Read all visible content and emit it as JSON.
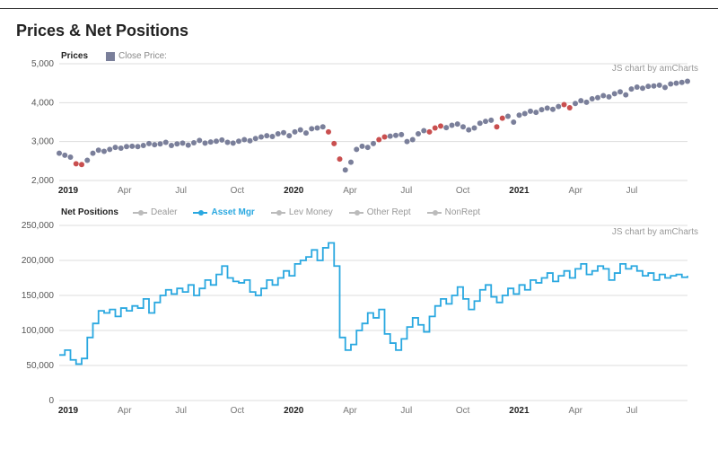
{
  "title": "Prices & Net Positions",
  "attribution": "JS chart by amCharts",
  "xaxis": {
    "range_months": [
      "2019-01",
      "2021-09"
    ],
    "ticks": [
      {
        "label": "2019",
        "bold": true
      },
      {
        "label": "Apr",
        "bold": false
      },
      {
        "label": "Jul",
        "bold": false
      },
      {
        "label": "Oct",
        "bold": false
      },
      {
        "label": "2020",
        "bold": true
      },
      {
        "label": "Apr",
        "bold": false
      },
      {
        "label": "Jul",
        "bold": false
      },
      {
        "label": "Oct",
        "bold": false
      },
      {
        "label": "2021",
        "bold": true
      },
      {
        "label": "Apr",
        "bold": false
      },
      {
        "label": "Jul",
        "bold": false
      }
    ]
  },
  "prices_chart": {
    "label": "Prices",
    "legend_label": "Close Price:",
    "type": "scatter",
    "marker_color": "#7a7f9a",
    "highlight_color": "#c94f4f",
    "marker_size": 3,
    "ylim": [
      2000,
      5000
    ],
    "ytick_step": 1000,
    "grid_color": "#dddddd",
    "background": "#ffffff",
    "highlight_indices": [
      3,
      4,
      48,
      49,
      50,
      57,
      58,
      66,
      67,
      68,
      78,
      79,
      90,
      91
    ],
    "values": [
      2700,
      2650,
      2600,
      2430,
      2410,
      2520,
      2700,
      2780,
      2750,
      2800,
      2850,
      2830,
      2870,
      2880,
      2870,
      2900,
      2950,
      2920,
      2940,
      2980,
      2900,
      2940,
      2960,
      2910,
      2970,
      3030,
      2960,
      2990,
      3010,
      3040,
      2980,
      2960,
      3010,
      3050,
      3020,
      3080,
      3120,
      3150,
      3130,
      3200,
      3230,
      3150,
      3250,
      3300,
      3220,
      3330,
      3350,
      3380,
      3250,
      2950,
      2550,
      2270,
      2470,
      2800,
      2880,
      2850,
      2950,
      3050,
      3120,
      3140,
      3160,
      3180,
      3000,
      3050,
      3200,
      3280,
      3250,
      3350,
      3400,
      3360,
      3420,
      3450,
      3380,
      3300,
      3350,
      3470,
      3520,
      3550,
      3380,
      3600,
      3650,
      3500,
      3680,
      3720,
      3780,
      3750,
      3820,
      3860,
      3830,
      3900,
      3950,
      3870,
      3980,
      4050,
      4010,
      4100,
      4130,
      4180,
      4150,
      4230,
      4280,
      4200,
      4350,
      4400,
      4370,
      4420,
      4430,
      4450,
      4390,
      4480,
      4500,
      4520,
      4550
    ]
  },
  "positions_chart": {
    "label": "Net Positions",
    "type": "step-line",
    "ylim": [
      0,
      250000
    ],
    "ytick_step": 50000,
    "grid_color": "#dddddd",
    "background": "#ffffff",
    "legend": [
      {
        "name": "Dealer",
        "color": "#bbbbbb",
        "active": false
      },
      {
        "name": "Asset Mgr",
        "color": "#2aa8e0",
        "active": true
      },
      {
        "name": "Lev Money",
        "color": "#bbbbbb",
        "active": false
      },
      {
        "name": "Other Rept",
        "color": "#bbbbbb",
        "active": false
      },
      {
        "name": "NonRept",
        "color": "#bbbbbb",
        "active": false
      }
    ],
    "series": {
      "Asset Mgr": [
        65000,
        72000,
        58000,
        52000,
        60000,
        90000,
        110000,
        128000,
        125000,
        130000,
        120000,
        132000,
        128000,
        135000,
        132000,
        145000,
        125000,
        140000,
        150000,
        158000,
        152000,
        160000,
        155000,
        165000,
        150000,
        160000,
        172000,
        165000,
        180000,
        192000,
        175000,
        170000,
        168000,
        172000,
        155000,
        150000,
        160000,
        172000,
        165000,
        175000,
        185000,
        178000,
        195000,
        200000,
        205000,
        215000,
        200000,
        218000,
        225000,
        192000,
        90000,
        72000,
        80000,
        100000,
        110000,
        125000,
        118000,
        130000,
        95000,
        82000,
        72000,
        88000,
        105000,
        118000,
        108000,
        98000,
        120000,
        135000,
        145000,
        138000,
        150000,
        162000,
        145000,
        130000,
        142000,
        158000,
        165000,
        148000,
        140000,
        150000,
        160000,
        152000,
        165000,
        158000,
        172000,
        168000,
        175000,
        182000,
        170000,
        178000,
        185000,
        175000,
        188000,
        195000,
        180000,
        185000,
        192000,
        188000,
        172000,
        182000,
        195000,
        188000,
        192000,
        185000,
        178000,
        182000,
        172000,
        180000,
        175000,
        178000,
        180000,
        176000,
        178000
      ]
    }
  }
}
